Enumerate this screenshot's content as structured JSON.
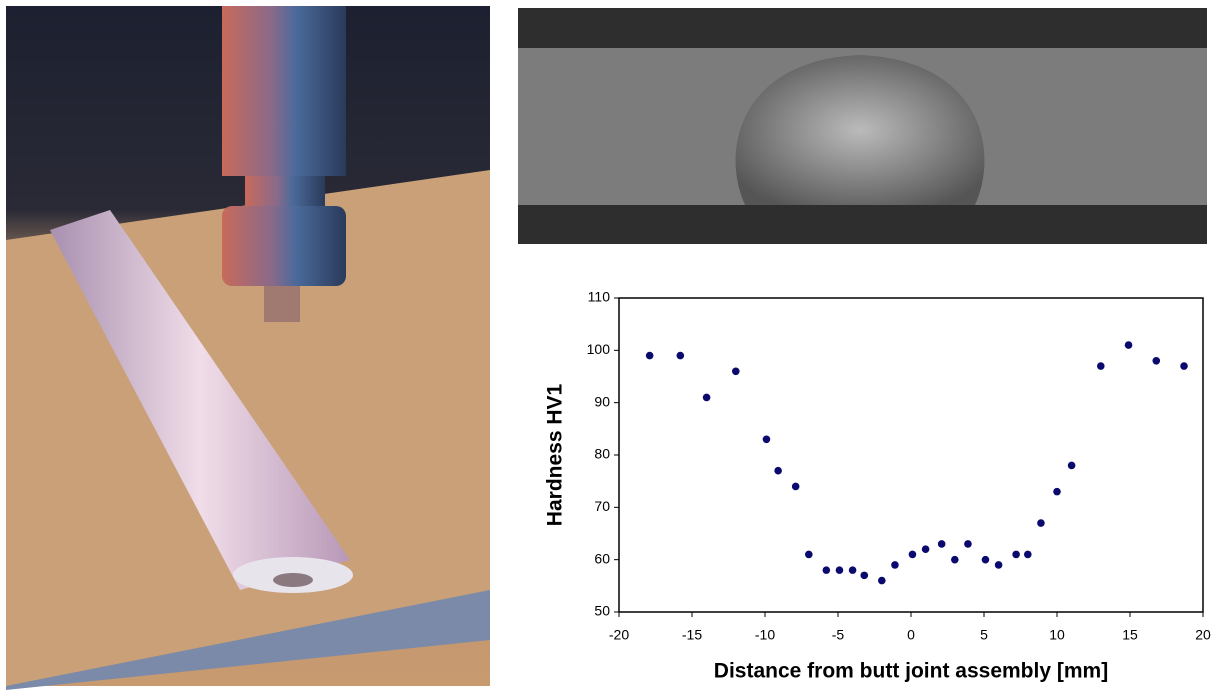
{
  "chart_data": {
    "type": "scatter",
    "x_label": "Distance from butt joint assembly [mm]",
    "y_label": "Hardness HV1",
    "x": [
      -17.9,
      -15.8,
      -14.0,
      -12.0,
      -9.9,
      -9.1,
      -7.9,
      -7.0,
      -5.8,
      -4.9,
      -4.0,
      -3.2,
      -2.0,
      -1.1,
      0.1,
      1.0,
      2.1,
      3.0,
      3.9,
      5.1,
      6.0,
      7.2,
      8.0,
      8.9,
      10.0,
      11.0,
      13.0,
      14.9,
      16.8,
      18.7
    ],
    "values": [
      99,
      99,
      91,
      96,
      83,
      77,
      74,
      61,
      58,
      58,
      58,
      57,
      56,
      59,
      61,
      62,
      63,
      60,
      63,
      60,
      59,
      61,
      61,
      67,
      73,
      78,
      97,
      101,
      98,
      97
    ],
    "color": "#0a0a6e",
    "xlim": [
      -20,
      20
    ],
    "xticks": [
      -20,
      -15,
      -10,
      -5,
      0,
      5,
      10,
      15,
      20
    ],
    "ylim": [
      50,
      110
    ],
    "yticks": [
      50,
      60,
      70,
      80,
      90,
      100,
      110
    ]
  }
}
